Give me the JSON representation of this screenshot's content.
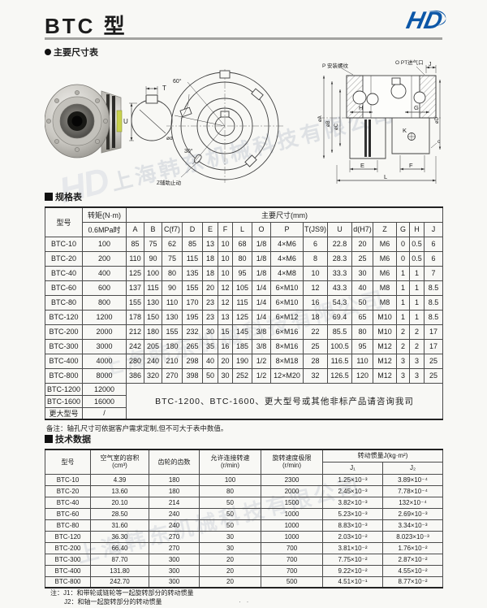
{
  "page": {
    "title": "BTC 型",
    "brand": "HD",
    "page_dots": "· ·"
  },
  "sections": {
    "dims_title": "主要尺寸表",
    "spec_title": "规格表",
    "tech_title": "技术数据"
  },
  "watermark": {
    "hd": "HD",
    "company": "上海韩东机械科技有限公司"
  },
  "drawing": {
    "labels": {
      "t": "T",
      "u": "U",
      "bore": "ød",
      "angle60": "60°",
      "angle30": "30°",
      "z_note": "Z辅助止动",
      "p_note": "P 安装螺纹",
      "o_note": "O PT进气口",
      "j": "J",
      "h": "H",
      "g": "G",
      "k": "K",
      "e": "E",
      "f": "F",
      "l": "L",
      "c": "c",
      "phi_a": "øA",
      "phi_b": "øB",
      "phi_c": "øC",
      "phi_d": "øD"
    }
  },
  "spec_table": {
    "header": {
      "model": "型号",
      "torque_line1": "转矩(N·m)",
      "torque_line2": "0.6MPa时",
      "dims_group": "主要尺寸(mm)",
      "dim_cols": [
        "A",
        "B",
        "C(f7)",
        "D",
        "E",
        "F",
        "L",
        "O",
        "P",
        "T(JS9)",
        "U",
        "d(H7)",
        "Z",
        "G",
        "H",
        "J"
      ]
    },
    "rows": [
      [
        "BTC-10",
        "100",
        "85",
        "75",
        "62",
        "85",
        "13",
        "10",
        "68",
        "1/8",
        "4×M6",
        "6",
        "22.8",
        "20",
        "M6",
        "0",
        "0.5",
        "6"
      ],
      [
        "BTC-20",
        "200",
        "110",
        "90",
        "75",
        "115",
        "18",
        "10",
        "80",
        "1/8",
        "4×M6",
        "8",
        "28.3",
        "25",
        "M6",
        "0",
        "0.5",
        "6"
      ],
      [
        "BTC-40",
        "400",
        "125",
        "100",
        "80",
        "135",
        "18",
        "10",
        "95",
        "1/8",
        "4×M8",
        "10",
        "33.3",
        "30",
        "M6",
        "1",
        "1",
        "7"
      ],
      [
        "BTC-60",
        "600",
        "137",
        "115",
        "90",
        "155",
        "20",
        "12",
        "105",
        "1/4",
        "6×M10",
        "12",
        "43.3",
        "40",
        "M8",
        "1",
        "1",
        "8.5"
      ],
      [
        "BTC-80",
        "800",
        "155",
        "130",
        "110",
        "170",
        "23",
        "12",
        "115",
        "1/4",
        "6×M10",
        "16",
        "54.3",
        "50",
        "M8",
        "1",
        "1",
        "8.5"
      ],
      [
        "BTC-120",
        "1200",
        "178",
        "150",
        "130",
        "195",
        "23",
        "13",
        "125",
        "1/4",
        "6×M12",
        "18",
        "69.4",
        "65",
        "M10",
        "1",
        "1",
        "8.5"
      ],
      [
        "BTC-200",
        "2000",
        "212",
        "180",
        "155",
        "232",
        "30",
        "15",
        "145",
        "3/8",
        "6×M16",
        "22",
        "85.5",
        "80",
        "M10",
        "2",
        "2",
        "17"
      ],
      [
        "BTC-300",
        "3000",
        "242",
        "205",
        "180",
        "265",
        "35",
        "16",
        "185",
        "3/8",
        "8×M16",
        "25",
        "100.5",
        "95",
        "M12",
        "2",
        "2",
        "17"
      ],
      [
        "BTC-400",
        "4000",
        "280",
        "240",
        "210",
        "298",
        "40",
        "20",
        "190",
        "1/2",
        "8×M18",
        "28",
        "116.5",
        "110",
        "M12",
        "3",
        "3",
        "25"
      ],
      [
        "BTC-800",
        "8000",
        "386",
        "320",
        "270",
        "398",
        "50",
        "30",
        "252",
        "1/2",
        "12×M20",
        "32",
        "126.5",
        "120",
        "M12",
        "3",
        "3",
        "25"
      ]
    ],
    "extra_rows": [
      [
        "BTC-1200",
        "12000"
      ],
      [
        "BTC-1600",
        "16000"
      ],
      [
        "更大型号",
        "/"
      ]
    ],
    "consult_note": "BTC-1200、BTC-1600、更大型号或其他非标产品请咨询我司"
  },
  "spec_note": "备注：轴孔尺寸可依据客户需求定制,但不可大于表中数值。",
  "tech_table": {
    "header": {
      "model": "型号",
      "volume_l1": "空气室的容积",
      "volume_l2": "(cm³)",
      "teeth": "齿轮的齿数",
      "connect_l1": "允许连接转速",
      "connect_l2": "(r/min)",
      "limit_l1": "旋转速度极限",
      "limit_l2": "(r/min)",
      "inertia_group": "转动惯量J(kg·m²)",
      "j1": "J₁",
      "j2": "J₂"
    },
    "rows": [
      [
        "BTC-10",
        "4.39",
        "180",
        "100",
        "2300",
        "1.25×10⁻³",
        "3.89×10⁻⁴"
      ],
      [
        "BTC-20",
        "13.60",
        "180",
        "80",
        "2000",
        "2.45×10⁻³",
        "7.78×10⁻⁴"
      ],
      [
        "BTC-40",
        "20.10",
        "214",
        "50",
        "1500",
        "3.82×10⁻³",
        "132×10⁻⁴"
      ],
      [
        "BTC-60",
        "28.50",
        "240",
        "50",
        "1000",
        "5.23×10⁻³",
        "2.69×10⁻³"
      ],
      [
        "BTC-80",
        "31.60",
        "240",
        "50",
        "1000",
        "8.83×10⁻³",
        "3.34×10⁻³"
      ],
      [
        "BTC-120",
        "36.30",
        "270",
        "30",
        "1000",
        "2.03×10⁻²",
        "8.023×10⁻³"
      ],
      [
        "BTC-200",
        "66.40",
        "270",
        "30",
        "700",
        "3.81×10⁻²",
        "1.76×10⁻²"
      ],
      [
        "BTC-300",
        "87.70",
        "300",
        "20",
        "700",
        "7.75×10⁻²",
        "2.87×10⁻²"
      ],
      [
        "BTC-400",
        "131.80",
        "300",
        "20",
        "700",
        "9.22×10⁻²",
        "4.55×10⁻²"
      ],
      [
        "BTC-800",
        "242.70",
        "300",
        "20",
        "500",
        "4.51×10⁻¹",
        "8.77×10⁻²"
      ]
    ]
  },
  "tech_notes": {
    "n1": "注：J1：和带轮或链轮等一起旋转部分的转动惯量",
    "n2": "J2：和轴一起旋转部分的转动惯量"
  },
  "colors": {
    "brand_blue": "#0c57a7",
    "rule_gray": "#a3a3a0",
    "watermark": "#c6cbd4"
  }
}
